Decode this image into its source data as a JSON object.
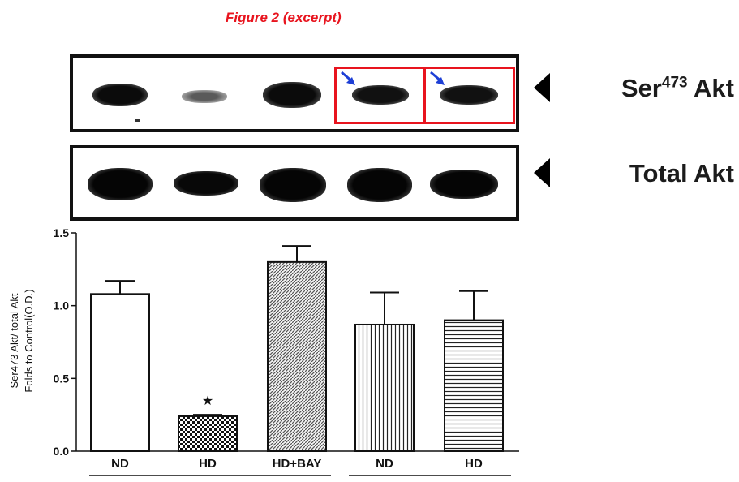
{
  "figure": {
    "title": "Figure 2 (excerpt)",
    "title_color": "#e8141e"
  },
  "blots": {
    "ser473": {
      "label_main": "Ser",
      "label_sup": "473",
      "label_tail": " Akt"
    },
    "total": {
      "label": "Total Akt"
    },
    "highlight_color": "#e8141e",
    "pointer_color": "#1d3fd6"
  },
  "chart_data": {
    "type": "bar",
    "categories": [
      "ND",
      "HD",
      "HD+BAY",
      "ND",
      "HD"
    ],
    "values": [
      1.08,
      0.24,
      1.3,
      0.87,
      0.9
    ],
    "errors": [
      0.09,
      0.01,
      0.11,
      0.22,
      0.2
    ],
    "patterns": [
      "white",
      "checker",
      "diagonal",
      "vertical",
      "horizontal"
    ],
    "significance": [
      "",
      "★",
      "",
      "",
      ""
    ],
    "ylabel_line1": "Ser473 Akt/ total Akt",
    "ylabel_line2": "Folds to Control(O.D.)",
    "ylim": [
      0,
      1.5
    ],
    "yticks": [
      "0.0",
      "0.5",
      "1.0",
      "1.5"
    ],
    "xlabel": "",
    "grid": false
  }
}
